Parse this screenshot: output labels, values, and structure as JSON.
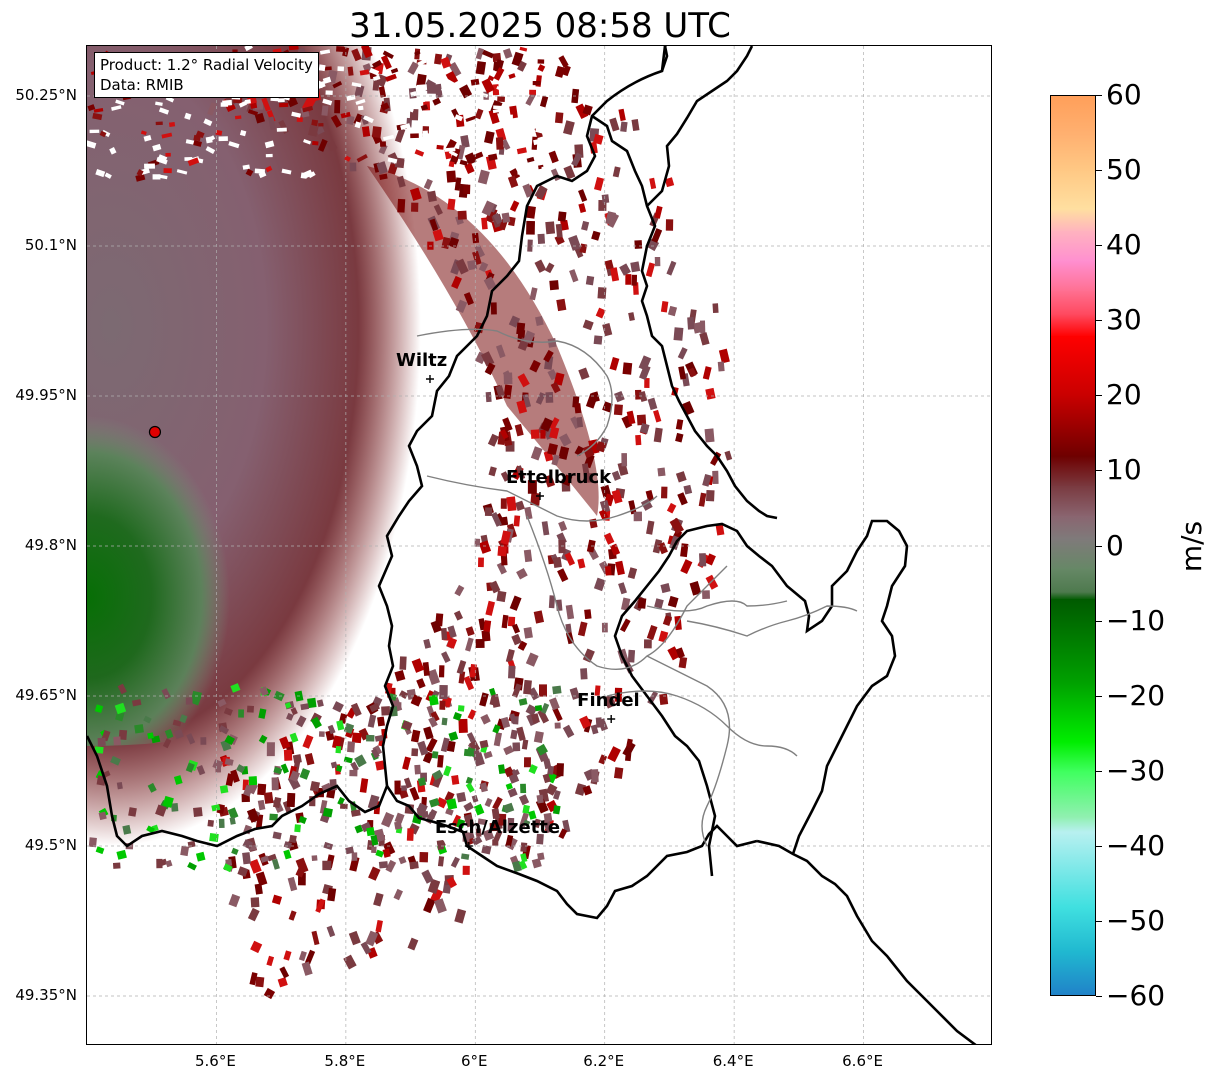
{
  "title": "31.05.2025 08:58 UTC",
  "info_box": {
    "product": "Product: 1.2° Radial Velocity",
    "source": "Data: RMIB"
  },
  "map": {
    "lon_range": [
      5.4,
      6.8
    ],
    "lat_range": [
      49.3,
      50.3
    ],
    "lat_labels": [
      "50.25°N",
      "50.1°N",
      "49.95°N",
      "49.8°N",
      "49.65°N",
      "49.5°N",
      "49.35°N"
    ],
    "lon_labels": [
      "5.6°E",
      "5.8°E",
      "6°E",
      "6.2°E",
      "6.4°E",
      "6.6°E"
    ],
    "cities": [
      {
        "name": "Wiltz",
        "lon": 5.93,
        "lat": 49.967
      },
      {
        "name": "Ettelbruck",
        "lon": 6.1,
        "lat": 49.85
      },
      {
        "name": "Findel",
        "lon": 6.21,
        "lat": 49.627
      },
      {
        "name": "Esch/Alzette",
        "lon": 5.99,
        "lat": 49.5
      }
    ],
    "radar_site": {
      "lon": 5.505,
      "lat": 49.914
    },
    "colors": {
      "border": "#000000",
      "admin": "#808080",
      "grid": "#b0b0b0",
      "radar_marker": "#e00000"
    }
  },
  "colorbar": {
    "label": "m/s",
    "min": -60,
    "max": 60,
    "ticks": [
      "60",
      "50",
      "40",
      "30",
      "20",
      "10",
      "0",
      "−10",
      "−20",
      "−30",
      "−40",
      "−50",
      "−60"
    ],
    "stops": [
      {
        "v": 60,
        "c": "#ff9f5a"
      },
      {
        "v": 55,
        "c": "#ffb070"
      },
      {
        "v": 50,
        "c": "#ffc985"
      },
      {
        "v": 45,
        "c": "#ffdfa0"
      },
      {
        "v": 42,
        "c": "#ffb3bf"
      },
      {
        "v": 38,
        "c": "#ff8fd0"
      },
      {
        "v": 34,
        "c": "#ff6f90"
      },
      {
        "v": 31,
        "c": "#ff4a60"
      },
      {
        "v": 28,
        "c": "#ff0000"
      },
      {
        "v": 20,
        "c": "#c80000"
      },
      {
        "v": 12,
        "c": "#6e0000"
      },
      {
        "v": 8,
        "c": "#7a3a40"
      },
      {
        "v": 4,
        "c": "#8a6570"
      },
      {
        "v": 1,
        "c": "#7f7a7a"
      },
      {
        "v": -3,
        "c": "#668866"
      },
      {
        "v": -6,
        "c": "#4e7a4e"
      },
      {
        "v": -7,
        "c": "#005a00"
      },
      {
        "v": -18,
        "c": "#00a000"
      },
      {
        "v": -26,
        "c": "#00ee00"
      },
      {
        "v": -30,
        "c": "#40ff60"
      },
      {
        "v": -36,
        "c": "#90f0b0"
      },
      {
        "v": -38,
        "c": "#b8f0f0"
      },
      {
        "v": -48,
        "c": "#40e0e0"
      },
      {
        "v": -54,
        "c": "#20b8d0"
      },
      {
        "v": -60,
        "c": "#2080c8"
      }
    ]
  }
}
